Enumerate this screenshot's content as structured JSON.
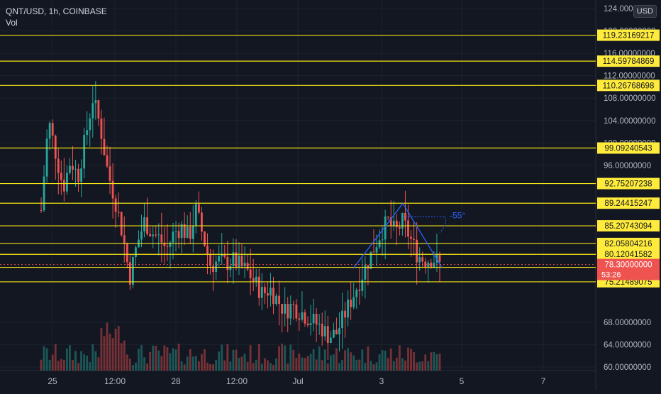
{
  "header": {
    "symbol_line": "QNT/USD, 1h, COINBASE",
    "indicator": "Vol"
  },
  "currency_badge": "USD",
  "chart_data": {
    "type": "candlestick",
    "title": "QNT/USD, 1h, COINBASE",
    "x_ticks": [
      "25",
      "12:00",
      "28",
      "12:00",
      "Jul",
      "3",
      "5",
      "7"
    ],
    "y_ticks": [
      "124.00000000",
      "120.00000000",
      "116.00000000",
      "112.00000000",
      "108.00000000",
      "104.00000000",
      "100.00000000",
      "96.00000000",
      "68.00000000",
      "64.00000000",
      "60.00000000"
    ],
    "y_range": [
      60,
      124.5
    ],
    "horizontal_levels": [
      "119.23169217",
      "114.59784869",
      "110.26768698",
      "99.09240543",
      "92.75207238",
      "89.24415247",
      "85.20743094",
      "82.05804216",
      "80.12041582",
      "77.79574550",
      "75.21489075"
    ],
    "last_price": "78.30000000",
    "countdown": "53:26",
    "annotation_angle": "-55°",
    "price_path": [
      [
        0,
        88
      ],
      [
        1,
        104
      ],
      [
        2,
        98
      ],
      [
        3,
        92
      ],
      [
        4,
        97
      ],
      [
        5,
        94
      ],
      [
        6,
        101
      ],
      [
        7,
        108
      ],
      [
        8,
        103
      ],
      [
        9,
        95
      ],
      [
        10,
        90
      ],
      [
        11,
        84
      ],
      [
        12,
        76
      ],
      [
        13,
        82
      ],
      [
        14,
        86
      ],
      [
        15,
        84
      ],
      [
        16,
        83
      ],
      [
        17,
        81
      ],
      [
        18,
        84
      ],
      [
        19,
        85
      ],
      [
        20,
        83
      ],
      [
        21,
        88
      ],
      [
        22,
        83
      ],
      [
        23,
        78
      ],
      [
        24,
        79
      ],
      [
        25,
        78.5
      ],
      [
        26,
        79
      ],
      [
        27,
        78
      ],
      [
        28,
        77
      ],
      [
        29,
        75
      ],
      [
        30,
        73
      ],
      [
        31,
        74
      ],
      [
        32,
        72
      ],
      [
        33,
        70
      ],
      [
        34,
        71
      ],
      [
        35,
        70
      ],
      [
        36,
        69
      ],
      [
        37,
        68
      ],
      [
        38,
        67
      ],
      [
        39,
        65.5
      ],
      [
        40,
        66
      ],
      [
        41,
        69
      ],
      [
        42,
        72
      ],
      [
        43,
        75
      ],
      [
        44,
        78
      ],
      [
        45,
        81
      ],
      [
        46,
        84
      ],
      [
        47,
        86
      ],
      [
        48,
        84
      ],
      [
        49,
        86
      ],
      [
        50,
        83
      ],
      [
        51,
        80
      ],
      [
        52,
        79
      ],
      [
        53,
        79.5
      ],
      [
        54,
        78.3
      ]
    ]
  }
}
